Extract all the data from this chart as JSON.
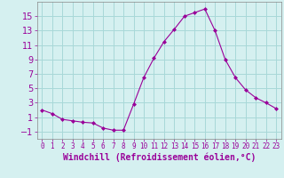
{
  "x": [
    0,
    1,
    2,
    3,
    4,
    5,
    6,
    7,
    8,
    9,
    10,
    11,
    12,
    13,
    14,
    15,
    16,
    17,
    18,
    19,
    20,
    21,
    22,
    23
  ],
  "y": [
    2.0,
    1.5,
    0.7,
    0.5,
    0.3,
    0.2,
    -0.5,
    -0.8,
    -0.8,
    2.8,
    6.5,
    9.2,
    11.5,
    13.2,
    15.0,
    15.5,
    16.0,
    13.0,
    9.0,
    6.5,
    4.8,
    3.7,
    3.0,
    2.2
  ],
  "line_color": "#990099",
  "marker": "D",
  "marker_size": 2,
  "bg_color": "#d5f0f0",
  "grid_color": "#a8d8d8",
  "ylabel_ticks": [
    -1,
    1,
    3,
    5,
    7,
    9,
    11,
    13,
    15
  ],
  "xlabel": "Windchill (Refroidissement éolien,°C)",
  "xlabel_fontsize": 7,
  "tick_fontsize": 7,
  "ylim": [
    -2,
    17
  ],
  "xlim": [
    -0.5,
    23.5
  ]
}
